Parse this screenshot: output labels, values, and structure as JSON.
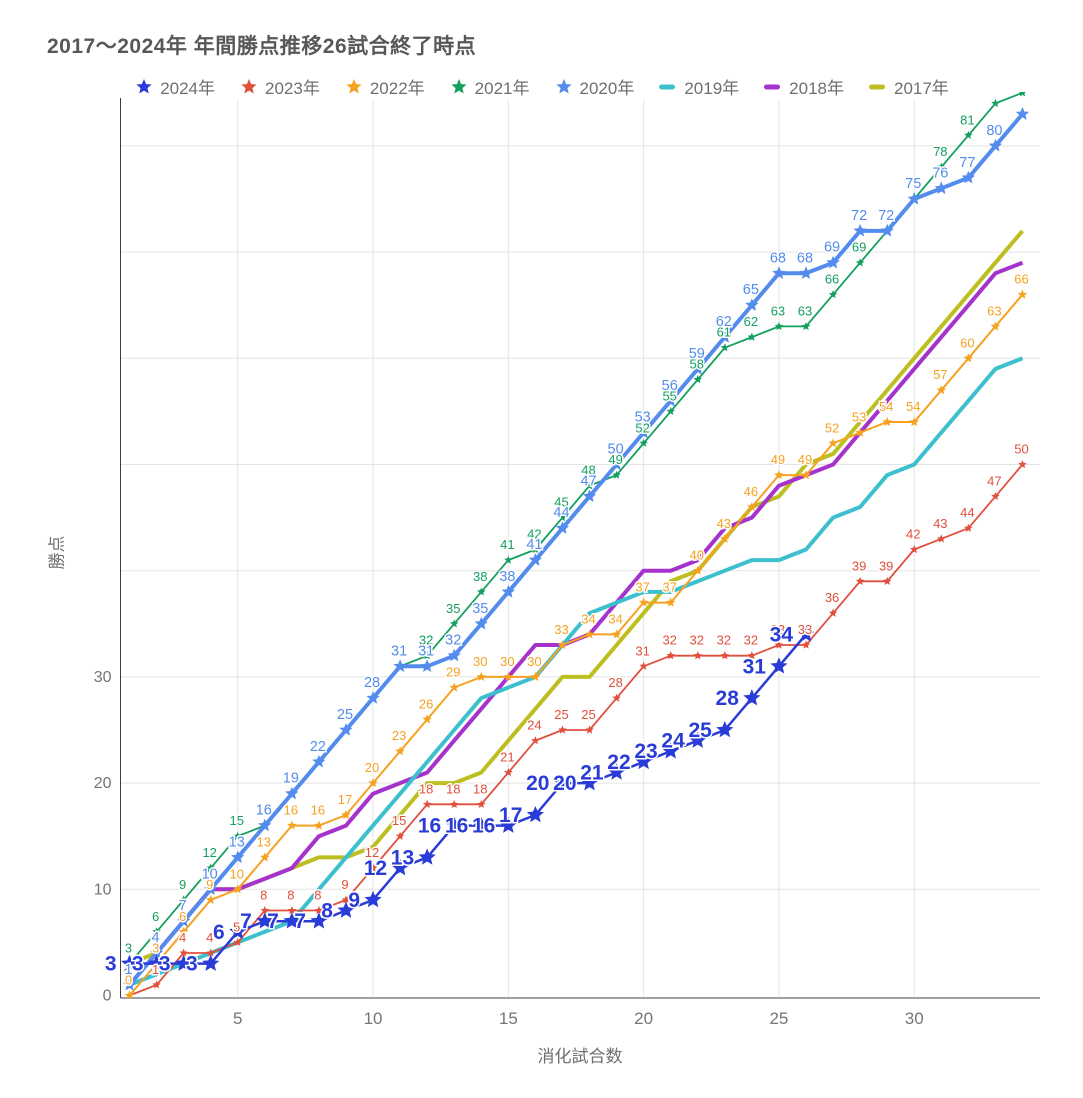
{
  "title": "2017〜2024年 年間勝点推移26試合終了時点",
  "x_axis": {
    "title": "消化試合数",
    "ticks": [
      5,
      10,
      15,
      20,
      25,
      30
    ]
  },
  "y_axis": {
    "title": "勝点",
    "ticks": [
      0,
      10,
      20,
      30
    ]
  },
  "chart_data": {
    "type": "line",
    "x_start": 1,
    "xlim": [
      0.7,
      34.6
    ],
    "ylim": [
      0,
      84.6
    ],
    "grid": true,
    "legend_position": "top",
    "xlabel": "消化試合数",
    "ylabel": "勝点",
    "series": [
      {
        "name": "2024年",
        "color": "#2a3cd7",
        "marker": "star",
        "marker_size": 9,
        "line_width": 2.5,
        "labels": true,
        "label_mode": "left",
        "label_size": 21,
        "label_bold": true,
        "values": [
          3,
          3,
          3,
          3,
          6,
          7,
          7,
          7,
          8,
          9,
          12,
          13,
          16,
          16,
          16,
          17,
          20,
          20,
          21,
          22,
          23,
          24,
          25,
          28,
          31,
          34
        ]
      },
      {
        "name": "2023年",
        "color": "#e0503c",
        "marker": "star",
        "marker_size": 4.5,
        "line_width": 1.8,
        "labels": true,
        "label_mode": "above",
        "label_size": 13,
        "label_bold": false,
        "values": [
          0,
          1,
          4,
          4,
          5,
          8,
          8,
          8,
          9,
          12,
          15,
          18,
          18,
          18,
          21,
          24,
          25,
          25,
          28,
          31,
          32,
          32,
          32,
          32,
          33,
          33,
          36,
          39,
          39,
          42,
          43,
          44,
          47,
          50
        ]
      },
      {
        "name": "2022年",
        "color": "#f6a120",
        "marker": "star",
        "marker_size": 5,
        "line_width": 2,
        "labels": true,
        "label_mode": "above",
        "label_size": 13,
        "label_bold": false,
        "values": [
          0,
          3,
          6,
          9,
          10,
          13,
          16,
          16,
          17,
          20,
          23,
          26,
          29,
          30,
          30,
          30,
          33,
          34,
          34,
          37,
          37,
          40,
          43,
          46,
          49,
          49,
          52,
          53,
          54,
          54,
          57,
          60,
          63,
          66
        ]
      },
      {
        "name": "2021年",
        "color": "#13a05e",
        "marker": "star",
        "marker_size": 4.5,
        "line_width": 1.8,
        "labels": true,
        "label_mode": "above2",
        "label_size": 13,
        "label_bold": false,
        "values": [
          3,
          6,
          9,
          12,
          15,
          16,
          19,
          22,
          25,
          28,
          31,
          32,
          35,
          38,
          41,
          42,
          45,
          48,
          49,
          52,
          55,
          58,
          61,
          62,
          63,
          63,
          66,
          69,
          72,
          75,
          78,
          81,
          84,
          85
        ]
      },
      {
        "name": "2020年",
        "color": "#548ced",
        "marker": "star",
        "marker_size": 7,
        "line_width": 4,
        "labels": true,
        "label_mode": "above",
        "label_size": 14.5,
        "label_bold": false,
        "values": [
          1,
          4,
          7,
          10,
          13,
          16,
          19,
          22,
          25,
          28,
          31,
          31,
          32,
          35,
          38,
          41,
          44,
          47,
          50,
          53,
          56,
          59,
          62,
          65,
          68,
          68,
          69,
          72,
          72,
          75,
          76,
          77,
          80,
          83
        ]
      },
      {
        "name": "2019年",
        "color": "#3cc0cd",
        "marker": "none",
        "marker_size": 0,
        "line_width": 4,
        "labels": false,
        "label_mode": "above",
        "label_size": 13,
        "label_bold": false,
        "values": [
          1,
          2,
          3,
          4,
          5,
          6,
          7,
          10,
          13,
          16,
          19,
          22,
          25,
          28,
          29,
          30,
          33,
          36,
          37,
          38,
          38,
          39,
          40,
          41,
          41,
          42,
          45,
          46,
          49,
          50,
          53,
          56,
          59,
          60
        ]
      },
      {
        "name": "2018年",
        "color": "#a632cc",
        "marker": "none",
        "marker_size": 0,
        "line_width": 4,
        "labels": false,
        "label_mode": "above",
        "label_size": 13,
        "label_bold": false,
        "values": [
          1,
          4,
          7,
          10,
          10,
          11,
          12,
          15,
          16,
          19,
          20,
          21,
          24,
          27,
          30,
          33,
          33,
          34,
          37,
          40,
          40,
          41,
          44,
          45,
          48,
          49,
          50,
          53,
          56,
          59,
          62,
          65,
          68,
          69
        ]
      },
      {
        "name": "2017年",
        "color": "#bdbe20",
        "marker": "none",
        "marker_size": 0,
        "line_width": 4,
        "labels": false,
        "label_mode": "above",
        "label_size": 13,
        "label_bold": false,
        "values": [
          3,
          4,
          7,
          10,
          10,
          11,
          12,
          13,
          13,
          14,
          17,
          20,
          20,
          21,
          24,
          27,
          30,
          30,
          33,
          36,
          39,
          40,
          43,
          46,
          47,
          50,
          51,
          54,
          57,
          60,
          63,
          66,
          69,
          72
        ]
      }
    ]
  }
}
